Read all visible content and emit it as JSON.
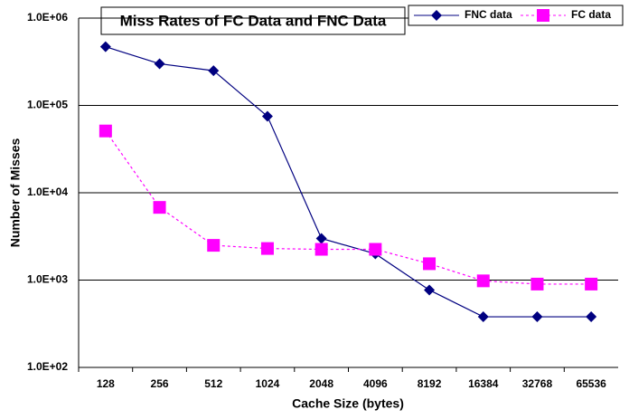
{
  "chart_data": {
    "type": "line",
    "title": "Miss Rates of FC Data and FNC Data",
    "x_label": "Cache Size (bytes)",
    "y_label": "Number of Misses",
    "categories": [
      "128",
      "256",
      "512",
      "1024",
      "2048",
      "4096",
      "8192",
      "16384",
      "32768",
      "65536"
    ],
    "series": [
      {
        "name": "FNC data",
        "color": "#000080",
        "marker": "diamond",
        "dash": false,
        "values": [
          470000,
          300000,
          250000,
          75000,
          3000,
          2000,
          770,
          380,
          380,
          380
        ]
      },
      {
        "name": "FC data",
        "color": "#ff00ff",
        "marker": "square",
        "dash": true,
        "values": [
          51000,
          6800,
          2500,
          2300,
          2250,
          2250,
          1540,
          980,
          900,
          900
        ]
      }
    ],
    "ylim": [
      100,
      1000000
    ],
    "yticks": [
      {
        "value": 100,
        "label": "1.0E+02"
      },
      {
        "value": 1000,
        "label": "1.0E+03"
      },
      {
        "value": 10000,
        "label": "1.0E+04"
      },
      {
        "value": 100000,
        "label": "1.0E+05"
      },
      {
        "value": 1000000,
        "label": "1.0E+06"
      }
    ],
    "log_y": true,
    "grid": true
  }
}
